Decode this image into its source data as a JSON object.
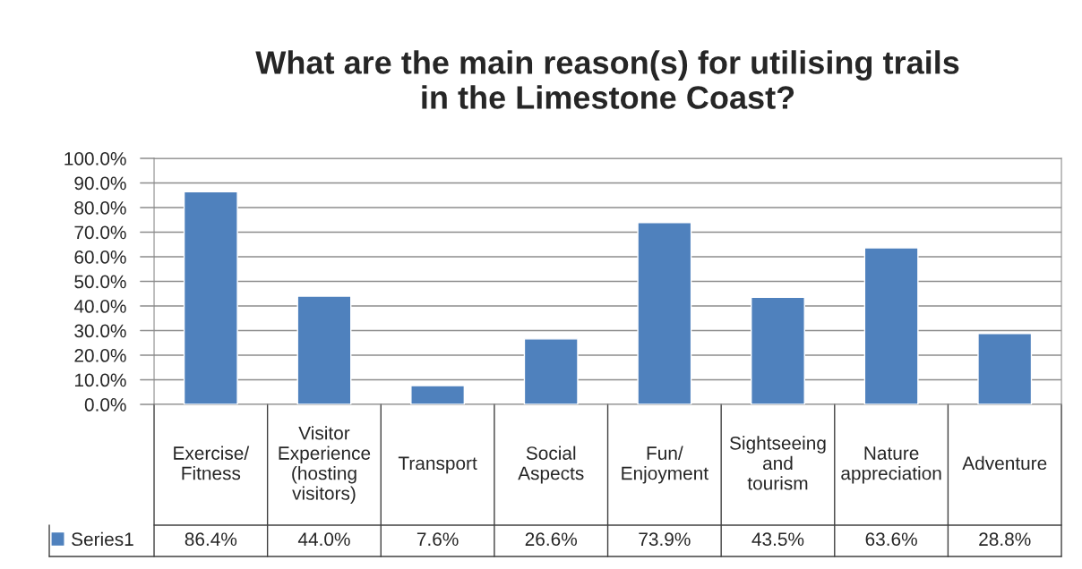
{
  "chart_data": {
    "type": "bar",
    "title": "What are the main reason(s) for utilising trails\nin the Limestone Coast?",
    "categories": [
      "Exercise/Fitness",
      "Visitor Experience (hosting visitors)",
      "Transport",
      "Social Aspects",
      "Fun/Enjoyment",
      "Sightseeing and tourism",
      "Nature appreciation",
      "Adventure"
    ],
    "series": [
      {
        "name": "Series1",
        "color": "#4f81bd",
        "values": [
          86.4,
          44.0,
          7.6,
          26.6,
          73.9,
          43.5,
          63.6,
          28.8
        ],
        "value_labels": [
          "86.4%",
          "44.0%",
          "7.6%",
          "26.6%",
          "73.9%",
          "43.5%",
          "63.6%",
          "28.8%"
        ]
      }
    ],
    "ylim": [
      0,
      100
    ],
    "yticks": [
      {
        "value": 0,
        "label": "0.0%"
      },
      {
        "value": 10,
        "label": "10.0%"
      },
      {
        "value": 20,
        "label": "20.0%"
      },
      {
        "value": 30,
        "label": "30.0%"
      },
      {
        "value": 40,
        "label": "40.0%"
      },
      {
        "value": 50,
        "label": "50.0%"
      },
      {
        "value": 60,
        "label": "60.0%"
      },
      {
        "value": 70,
        "label": "70.0%"
      },
      {
        "value": 80,
        "label": "80.0%"
      },
      {
        "value": 90,
        "label": "90.0%"
      },
      {
        "value": 100,
        "label": "100.0%"
      }
    ],
    "grid": "y",
    "legend": "bottom left"
  }
}
